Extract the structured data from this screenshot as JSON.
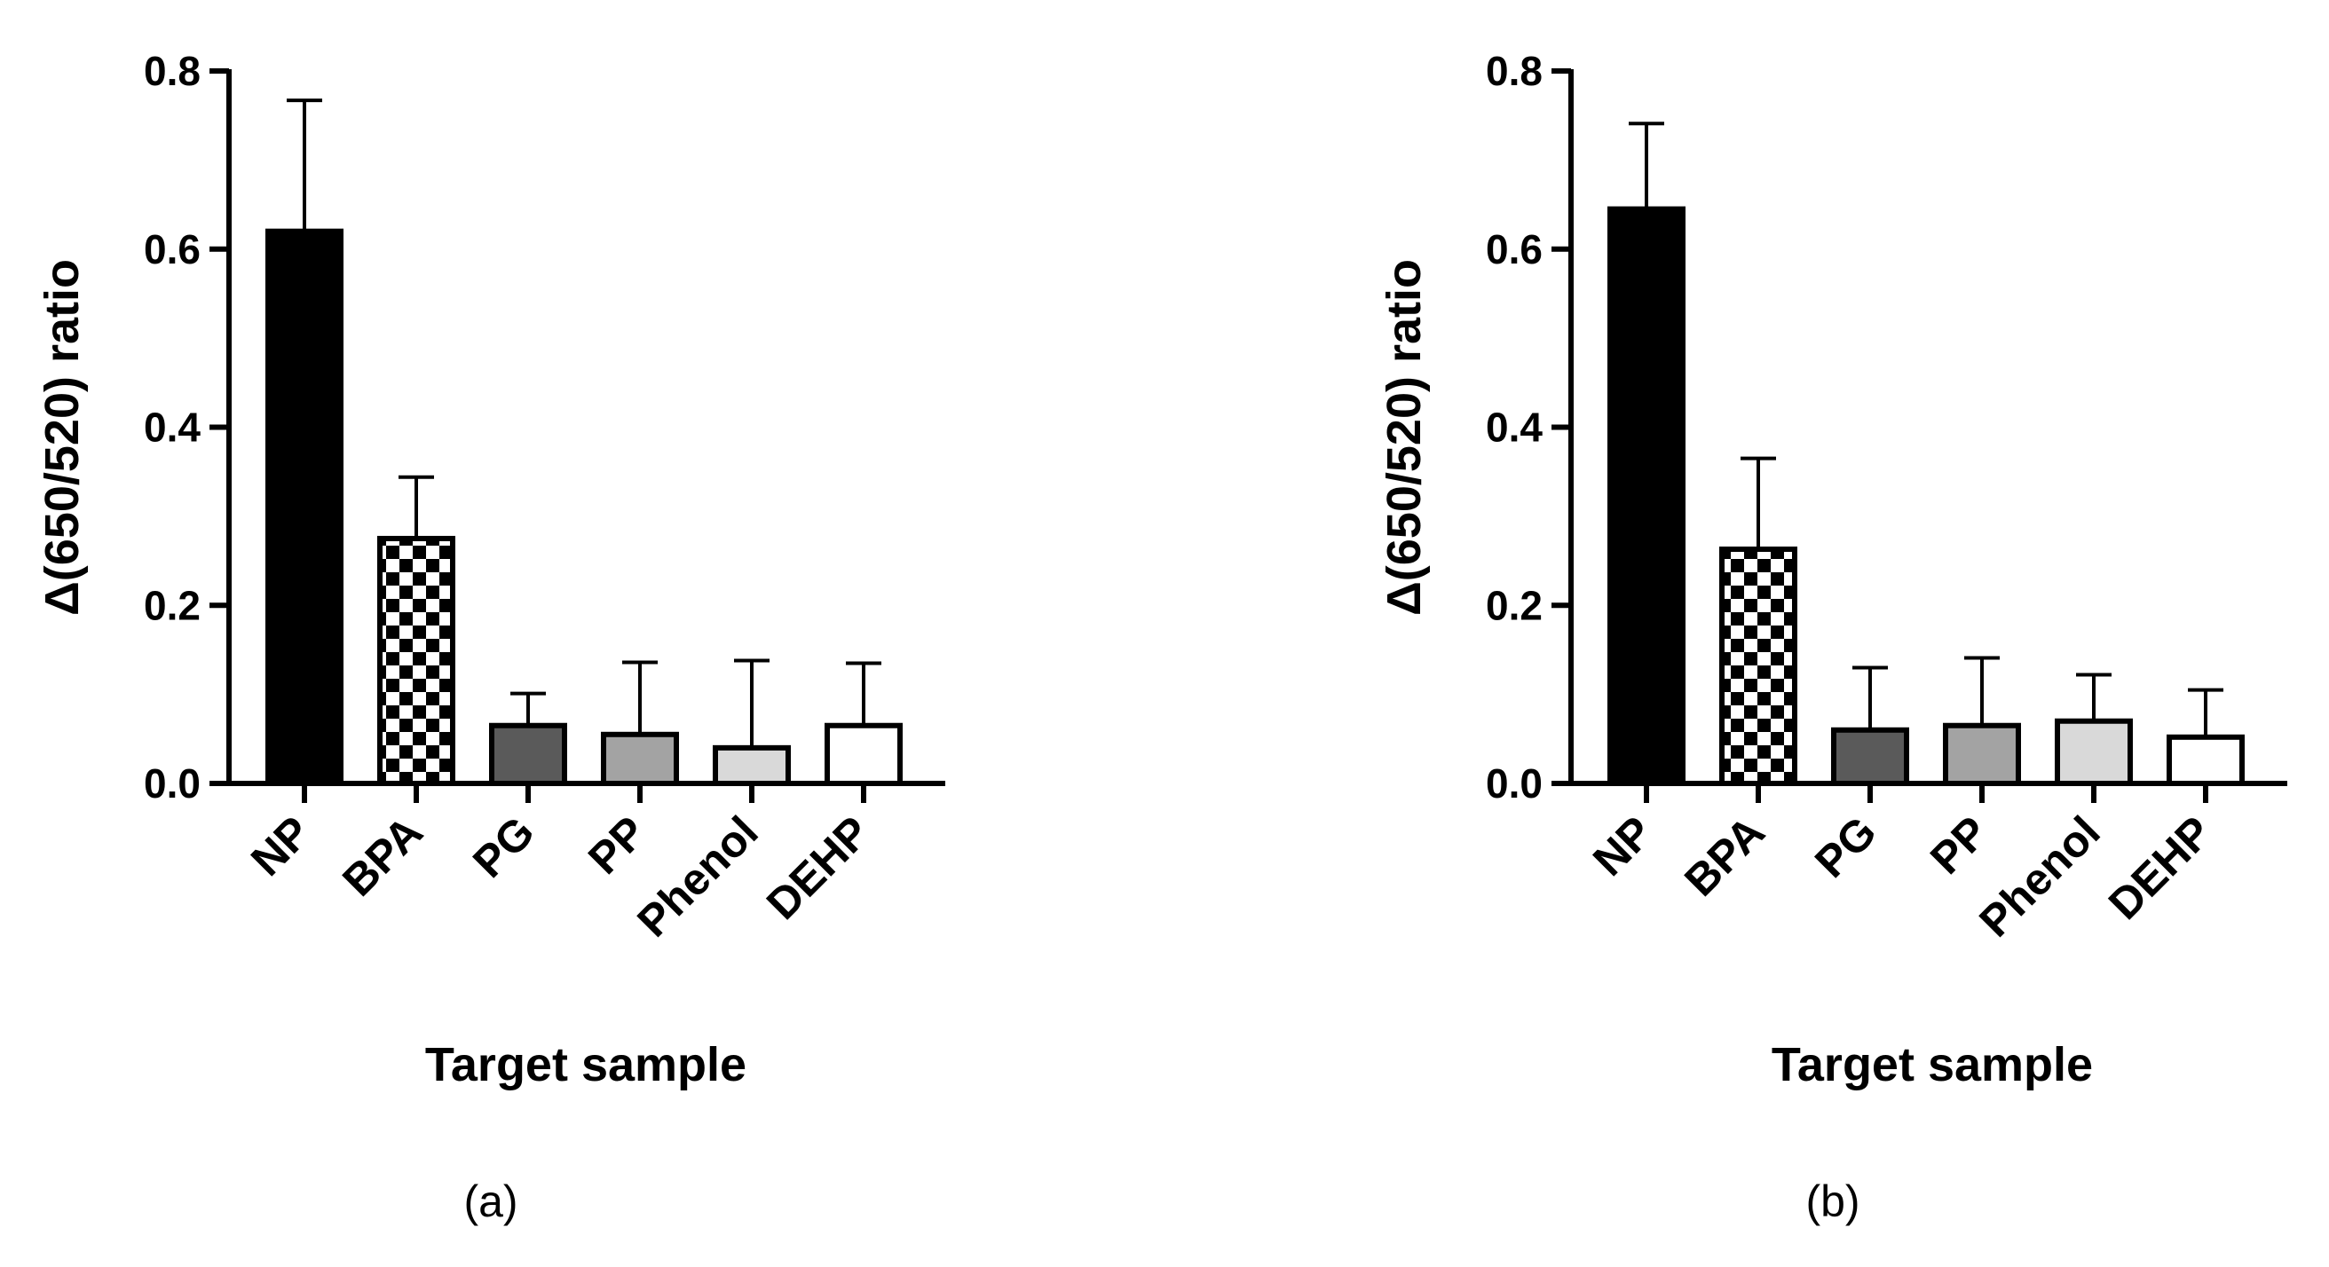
{
  "chart_data": [
    {
      "panel": "(a)",
      "type": "bar",
      "title": "",
      "xlabel": "Target sample",
      "ylabel": "Δ(650/520) ratio",
      "ylim": [
        0,
        0.8
      ],
      "yticks": [
        "0.0",
        "0.2",
        "0.4",
        "0.6",
        "0.8"
      ],
      "grid": false,
      "categories": [
        "NP",
        "BPA",
        "PG",
        "PP",
        "Phenol",
        "DEHP"
      ],
      "values": [
        0.62,
        0.275,
        0.065,
        0.055,
        0.04,
        0.065
      ],
      "errors": [
        0.147,
        0.069,
        0.036,
        0.081,
        0.098,
        0.07
      ],
      "fills": [
        "#000000",
        "checker",
        "#5a5a5a",
        "#a3a3a3",
        "#d9d9d9",
        "#ffffff"
      ]
    },
    {
      "panel": "(b)",
      "type": "bar",
      "title": "",
      "xlabel": "Target sample",
      "ylabel": "Δ(650/520) ratio",
      "ylim": [
        0,
        0.8
      ],
      "yticks": [
        "0.0",
        "0.2",
        "0.4",
        "0.6",
        "0.8"
      ],
      "grid": false,
      "categories": [
        "NP",
        "BPA",
        "PG",
        "PP",
        "Phenol",
        "DEHP"
      ],
      "values": [
        0.645,
        0.263,
        0.06,
        0.065,
        0.07,
        0.052
      ],
      "errors": [
        0.096,
        0.102,
        0.07,
        0.076,
        0.052,
        0.053
      ],
      "fills": [
        "#000000",
        "checker",
        "#5a5a5a",
        "#a3a3a3",
        "#d9d9d9",
        "#ffffff"
      ]
    }
  ]
}
